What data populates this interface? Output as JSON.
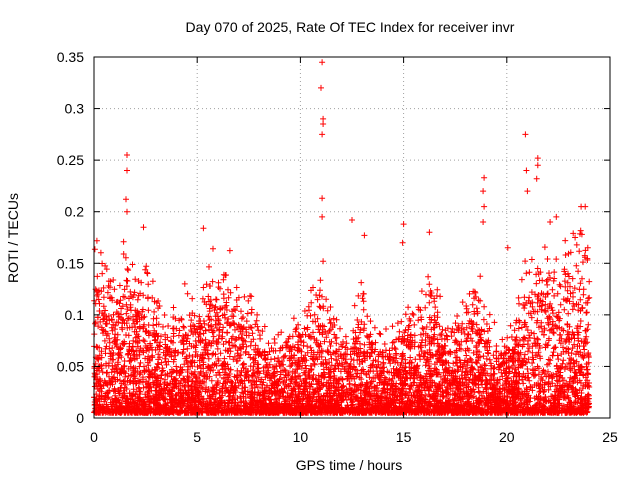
{
  "chart_data": {
    "type": "scatter",
    "title": "Day 070 of 2025, Rate Of TEC Index for receiver invr",
    "xlabel": "GPS time / hours",
    "ylabel": "ROTI / TECUs",
    "xlim": [
      0,
      25
    ],
    "ylim": [
      0,
      0.35
    ],
    "xticks": [
      0,
      5,
      10,
      15,
      20,
      25
    ],
    "yticks": [
      0,
      0.05,
      0.1,
      0.15,
      0.2,
      0.25,
      0.3,
      0.35
    ],
    "xtick_labels": [
      "0",
      "5",
      "10",
      "15",
      "20",
      "25"
    ],
    "ytick_labels": [
      "0",
      "0.05",
      "0.1",
      "0.15",
      "0.2",
      "0.25",
      "0.3",
      "0.35"
    ],
    "grid": true,
    "marker": "plus",
    "color": "#ff0000",
    "notable_points": [
      {
        "x": 11.05,
        "y": 0.345
      },
      {
        "x": 11.0,
        "y": 0.32
      },
      {
        "x": 11.1,
        "y": 0.29
      },
      {
        "x": 11.1,
        "y": 0.285
      },
      {
        "x": 11.05,
        "y": 0.275
      },
      {
        "x": 11.05,
        "y": 0.213
      },
      {
        "x": 11.05,
        "y": 0.195
      },
      {
        "x": 11.1,
        "y": 0.152
      },
      {
        "x": 1.6,
        "y": 0.255
      },
      {
        "x": 1.6,
        "y": 0.24
      },
      {
        "x": 1.55,
        "y": 0.212
      },
      {
        "x": 1.6,
        "y": 0.2
      },
      {
        "x": 2.4,
        "y": 0.185
      },
      {
        "x": 5.3,
        "y": 0.184
      },
      {
        "x": 20.9,
        "y": 0.275
      },
      {
        "x": 21.5,
        "y": 0.252
      },
      {
        "x": 21.5,
        "y": 0.245
      },
      {
        "x": 21.45,
        "y": 0.232
      },
      {
        "x": 21.0,
        "y": 0.22
      },
      {
        "x": 20.95,
        "y": 0.24
      },
      {
        "x": 18.9,
        "y": 0.233
      },
      {
        "x": 18.85,
        "y": 0.22
      },
      {
        "x": 18.9,
        "y": 0.205
      },
      {
        "x": 18.85,
        "y": 0.19
      },
      {
        "x": 15.0,
        "y": 0.188
      },
      {
        "x": 14.95,
        "y": 0.17
      },
      {
        "x": 13.1,
        "y": 0.177
      },
      {
        "x": 16.25,
        "y": 0.18
      },
      {
        "x": 20.05,
        "y": 0.165
      },
      {
        "x": 12.5,
        "y": 0.192
      },
      {
        "x": 23.6,
        "y": 0.205
      },
      {
        "x": 23.8,
        "y": 0.205
      },
      {
        "x": 22.4,
        "y": 0.195
      },
      {
        "x": 22.1,
        "y": 0.19
      },
      {
        "x": 4.4,
        "y": 0.13
      }
    ],
    "density_profile": {
      "hours": [
        0,
        0.5,
        1,
        1.5,
        2,
        2.5,
        3,
        3.5,
        4,
        4.5,
        5,
        5.5,
        6,
        6.5,
        7,
        7.5,
        8,
        8.5,
        9,
        9.5,
        10,
        10.5,
        11,
        11.5,
        12,
        12.5,
        13,
        13.5,
        14,
        14.5,
        15,
        15.5,
        16,
        16.5,
        17,
        17.5,
        18,
        18.5,
        19,
        19.5,
        20,
        20.5,
        21,
        21.5,
        22,
        22.5,
        23,
        23.5,
        24
      ],
      "typical_max_roti": [
        0.16,
        0.14,
        0.13,
        0.15,
        0.12,
        0.14,
        0.1,
        0.09,
        0.09,
        0.1,
        0.11,
        0.14,
        0.13,
        0.14,
        0.12,
        0.1,
        0.08,
        0.07,
        0.07,
        0.07,
        0.09,
        0.11,
        0.12,
        0.09,
        0.07,
        0.08,
        0.12,
        0.09,
        0.07,
        0.08,
        0.1,
        0.09,
        0.12,
        0.11,
        0.09,
        0.08,
        0.1,
        0.12,
        0.1,
        0.07,
        0.07,
        0.09,
        0.14,
        0.16,
        0.14,
        0.13,
        0.15,
        0.17,
        0.16
      ]
    }
  }
}
